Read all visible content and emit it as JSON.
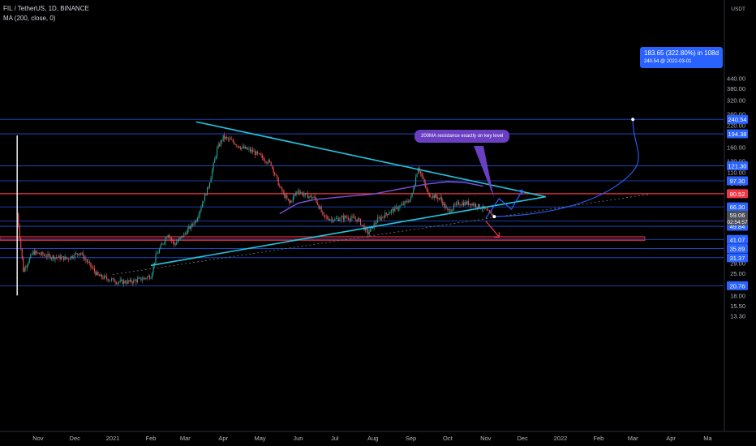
{
  "header": {
    "symbol_line": "FIL / TetherUS, 1D, BINANCE",
    "indicator_line": "MA (200, close, 0)"
  },
  "axis": {
    "currency": "USDT",
    "price_ticks": [
      "440.00",
      "380.00",
      "320.00",
      "260.00",
      "220.00",
      "160.00",
      "130.00",
      "110.00",
      "94.00",
      "54.00",
      "29.00",
      "25.00",
      "18.00",
      "15.50",
      "13.30"
    ],
    "time_ticks": [
      "Nov",
      "Dec",
      "2021",
      "Feb",
      "Mar",
      "Apr",
      "May",
      "Jun",
      "Jul",
      "Aug",
      "Sep",
      "Oct",
      "Nov",
      "Dec",
      "2022",
      "Feb",
      "Mar",
      "Apr",
      "Ma"
    ]
  },
  "levels": [
    {
      "label": "240.54",
      "kind": "blue"
    },
    {
      "label": "194.38",
      "kind": "blue"
    },
    {
      "label": "121.30",
      "kind": "blue"
    },
    {
      "label": "97.30",
      "kind": "blue"
    },
    {
      "label": "80.52",
      "kind": "red"
    },
    {
      "label": "66.30",
      "kind": "blue"
    },
    {
      "label": "53.80",
      "kind": "blue"
    },
    {
      "label": "49.84",
      "kind": "blue"
    },
    {
      "label": "41.07",
      "kind": "blue"
    },
    {
      "label": "35.89",
      "kind": "blue"
    },
    {
      "label": "31.37",
      "kind": "blue"
    },
    {
      "label": "20.76",
      "kind": "blue"
    }
  ],
  "current_price": {
    "value": "59.06",
    "countdown": "02:54:57"
  },
  "callouts": {
    "projection_line1": "183.65 (322.80%) in 108d",
    "projection_line2": "240.54 @ 2022-03-01",
    "annotation": "200MA resistance exactly on key level"
  },
  "colors": {
    "up": "#26a69a",
    "down": "#ef5350",
    "trendline": "#22c7e0",
    "ma": "#7b4fd6",
    "level": "#2962ff",
    "resistance": "#f23645"
  },
  "chart_data": {
    "type": "candlestick",
    "title": "FIL / TetherUS, 1D, BINANCE",
    "indicator": "MA (200, close, 0)",
    "y_scale": "log",
    "ylim": [
      12,
      440
    ],
    "x_range": [
      "2020-10-15",
      "2022-05-01"
    ],
    "price_series": {
      "x": [
        "2020-10-15",
        "2020-10-20",
        "2020-10-28",
        "2020-11-10",
        "2020-11-25",
        "2020-12-05",
        "2020-12-20",
        "2020-12-28",
        "2021-01-05",
        "2021-01-15",
        "2021-01-25",
        "2021-02-01",
        "2021-02-05",
        "2021-02-15",
        "2021-02-20",
        "2021-03-01",
        "2021-03-10",
        "2021-03-20",
        "2021-03-27",
        "2021-04-01",
        "2021-04-08",
        "2021-04-15",
        "2021-04-25",
        "2021-05-01",
        "2021-05-10",
        "2021-05-18",
        "2021-05-25",
        "2021-06-01",
        "2021-06-05",
        "2021-06-15",
        "2021-06-22",
        "2021-07-01",
        "2021-07-10",
        "2021-07-20",
        "2021-07-28",
        "2021-08-05",
        "2021-08-15",
        "2021-08-25",
        "2021-09-01",
        "2021-09-07",
        "2021-09-15",
        "2021-09-25",
        "2021-10-01",
        "2021-10-10",
        "2021-10-20",
        "2021-10-30",
        "2021-11-05",
        "2021-11-07"
      ],
      "close": [
        60,
        26,
        34,
        32,
        31,
        34,
        24,
        23,
        22,
        22,
        23,
        24,
        32,
        45,
        38,
        45,
        55,
        90,
        155,
        185,
        175,
        160,
        150,
        140,
        125,
        85,
        70,
        85,
        80,
        75,
        57,
        55,
        57,
        55,
        45,
        55,
        62,
        68,
        75,
        120,
        80,
        75,
        62,
        70,
        70,
        65,
        59,
        59.06
      ]
    },
    "ma200": {
      "x": [
        "2021-05-17",
        "2021-06-01",
        "2021-06-15",
        "2021-07-01",
        "2021-07-15",
        "2021-08-01",
        "2021-08-15",
        "2021-09-01",
        "2021-09-15",
        "2021-10-01",
        "2021-10-15",
        "2021-10-30"
      ],
      "y": [
        60,
        70,
        74,
        76,
        78,
        80,
        84,
        89,
        93,
        96,
        95,
        90
      ]
    },
    "horizontal_levels": [
      240.54,
      194.38,
      121.3,
      97.3,
      80.52,
      66.3,
      53.8,
      49.84,
      41.07,
      35.89,
      31.37,
      20.76
    ],
    "support_zone": [
      40.5,
      42.8
    ],
    "trendlines": [
      {
        "name": "descending",
        "x": [
          "2021-03-10",
          "2021-12-20"
        ],
        "y": [
          232,
          77
        ]
      },
      {
        "name": "ascending",
        "x": [
          "2021-02-01",
          "2021-12-20"
        ],
        "y": [
          28,
          77
        ]
      },
      {
        "name": "dotted",
        "x": [
          "2021-01-01",
          "2022-03-15"
        ],
        "y": [
          24.5,
          80
        ]
      }
    ],
    "projection": {
      "x": [
        "2021-11-08",
        "2021-12-01",
        "2022-01-15",
        "2022-02-15",
        "2022-03-01"
      ],
      "y": [
        57.5,
        58,
        62,
        90,
        240.54
      ]
    },
    "bull_path": {
      "x": [
        "2021-11-01",
        "2021-11-12",
        "2021-11-22",
        "2021-12-01"
      ],
      "y": [
        56,
        75,
        64,
        85
      ]
    },
    "bear_path": {
      "x": [
        "2021-11-01",
        "2021-11-12"
      ],
      "y": [
        54,
        42.5
      ]
    },
    "annotations": [
      "200MA resistance exactly on key level",
      "183.65 (322.80%) in 108d",
      "240.54 @ 2022-03-01"
    ]
  }
}
